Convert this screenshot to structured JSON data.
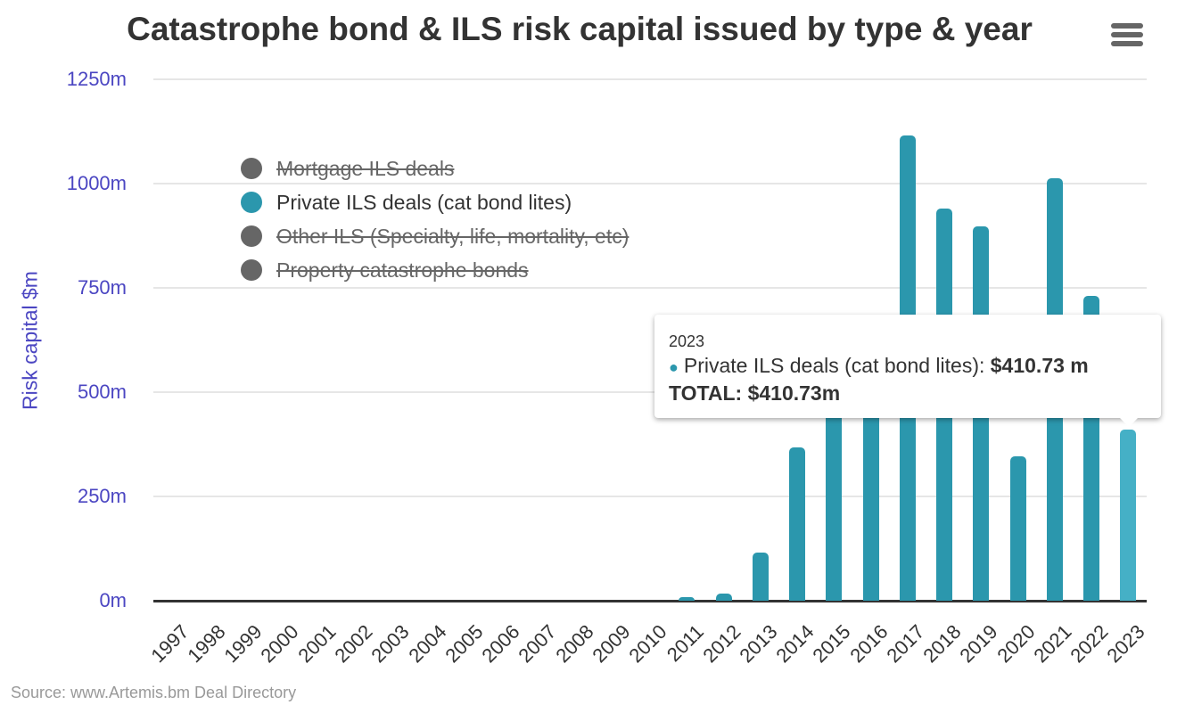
{
  "header": {
    "title": "Catastrophe bond & ILS risk capital issued by type & year",
    "menu_icon": "hamburger-menu-icon"
  },
  "axes": {
    "ylabel": "Risk capital $m",
    "yticks": [
      "0m",
      "250m",
      "500m",
      "750m",
      "1000m",
      "1250m"
    ]
  },
  "legend": {
    "items": [
      {
        "label": "Mortgage ILS deals",
        "visible": false,
        "color": "#666666"
      },
      {
        "label": "Private ILS deals (cat bond lites)",
        "visible": true,
        "color": "#2b97ad"
      },
      {
        "label": "Other ILS (Specialty, life, mortality, etc)",
        "visible": false,
        "color": "#666666"
      },
      {
        "label": "Property catastrophe bonds",
        "visible": false,
        "color": "#666666"
      }
    ]
  },
  "tooltip": {
    "year": "2023",
    "series_label": "Private ILS deals (cat bond lites): ",
    "series_value": "$410.73 m",
    "total": "TOTAL: $410.73m"
  },
  "source": "Source: www.Artemis.bm Deal Directory",
  "chart_data": {
    "type": "bar",
    "title": "Catastrophe bond & ILS risk capital issued by type & year",
    "xlabel": "",
    "ylabel": "Risk capital $m",
    "ylim": [
      0,
      1250
    ],
    "yticks": [
      0,
      250,
      500,
      750,
      1000,
      1250
    ],
    "grid": true,
    "legend_position": "top-left inside",
    "categories": [
      "1997",
      "1998",
      "1999",
      "2000",
      "2001",
      "2002",
      "2003",
      "2004",
      "2005",
      "2006",
      "2007",
      "2008",
      "2009",
      "2010",
      "2011",
      "2012",
      "2013",
      "2014",
      "2015",
      "2016",
      "2017",
      "2018",
      "2019",
      "2020",
      "2021",
      "2022",
      "2023"
    ],
    "series": [
      {
        "name": "Mortgage ILS deals",
        "visible": false,
        "values": []
      },
      {
        "name": "Private ILS deals (cat bond lites)",
        "visible": true,
        "color": "#2b97ad",
        "values": [
          0,
          0,
          0,
          0,
          0,
          0,
          0,
          0,
          0,
          0,
          0,
          0,
          0,
          0,
          9,
          17,
          115,
          368,
          480,
          560,
          1115,
          940,
          897,
          346,
          1013,
          731,
          410.73
        ]
      },
      {
        "name": "Other ILS (Specialty, life, mortality, etc)",
        "visible": false,
        "values": []
      },
      {
        "name": "Property catastrophe bonds",
        "visible": false,
        "values": []
      }
    ],
    "annotations": [
      "Tooltip: 2023 Private ILS deals (cat bond lites): $410.73 m; TOTAL: $410.73m"
    ]
  }
}
